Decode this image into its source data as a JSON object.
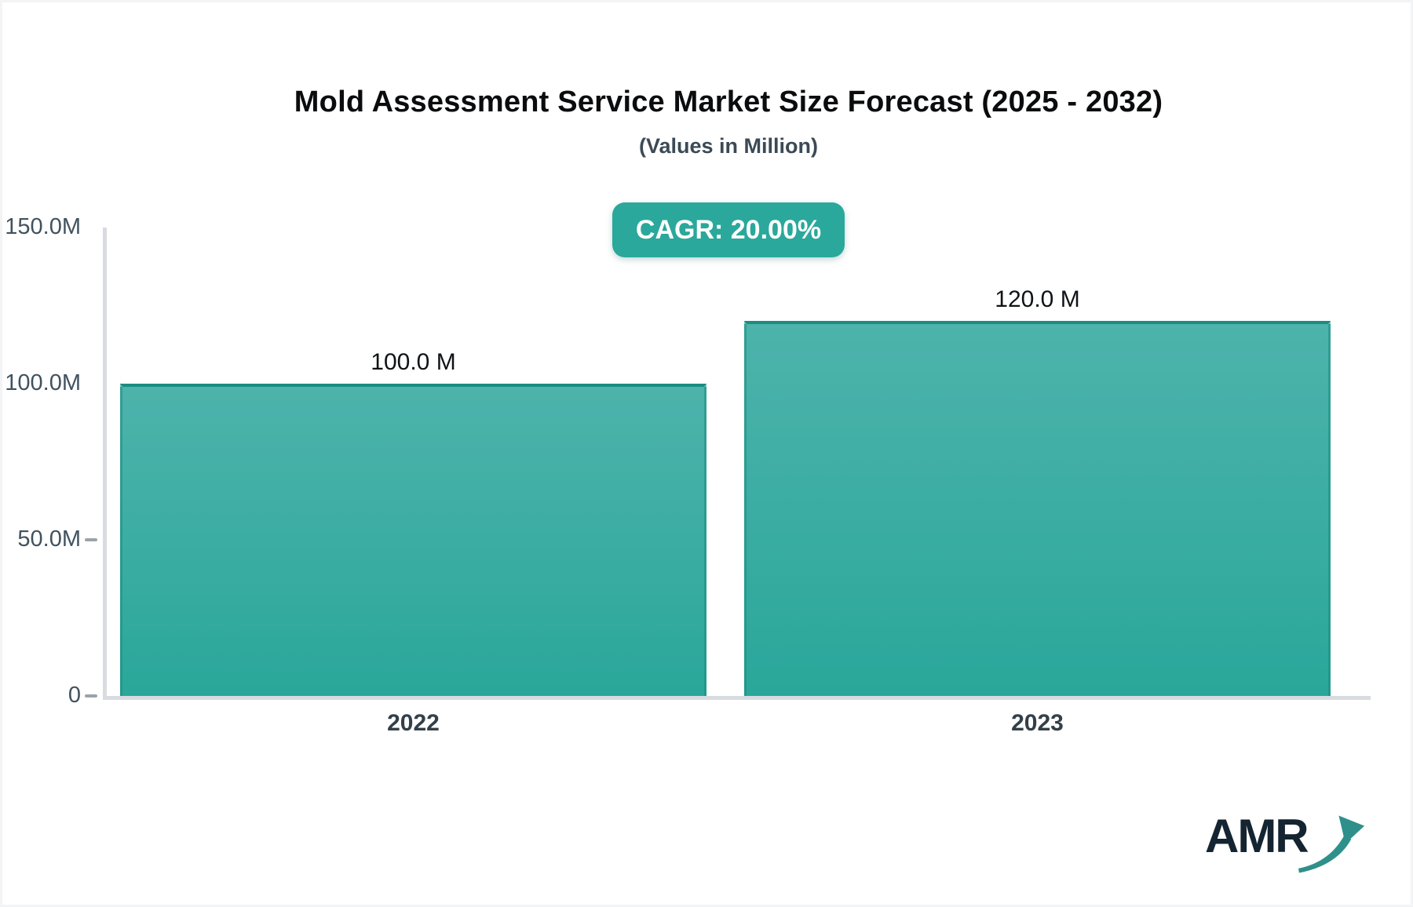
{
  "page": {
    "background": "#ffffff",
    "frame_color": "#f2f4f6"
  },
  "header": {
    "title": "Mold Assessment Service Market Size Forecast (2025 - 2032)",
    "subtitle": "(Values in Million)",
    "cagr_label": "CAGR: 20.00%",
    "badge_color": "#2aa89b"
  },
  "chart_data": {
    "type": "bar",
    "title": "Mold Assessment Service Market Size Forecast (2025 - 2032)",
    "subtitle": "(Values in Million)",
    "unit": "Million",
    "categories": [
      "2022",
      "2023"
    ],
    "values": [
      100.0,
      120.0
    ],
    "bar_labels": [
      "100.0 M",
      "120.0 M"
    ],
    "cagr_percent": "20.00%",
    "xlabel": "",
    "ylabel": "",
    "ylim": [
      0,
      150
    ],
    "yticks": [
      {
        "label": "150.0M",
        "value": 150,
        "dash": false
      },
      {
        "label": "100.0M",
        "value": 100,
        "dash": false
      },
      {
        "label": "50.0M",
        "value": 50,
        "dash": true
      },
      {
        "label": "0",
        "value": 0,
        "dash": true
      }
    ],
    "grid": false,
    "legend": false,
    "colors": {
      "bar_gradient_top": "#4db3ab",
      "bar_gradient_bottom": "#2aa79a",
      "bar_border": "#1c8c82",
      "axis_line": "#d8dbe0",
      "tick_dash": "#9aa3ab",
      "y_label": "#41525f",
      "x_label": "#334049",
      "value_label": "#0f1316"
    }
  },
  "logo": {
    "text": "AMR",
    "arrow_icon": "trend-up-arrow",
    "text_color": "#142431",
    "arrow_color": "#2f908b"
  }
}
